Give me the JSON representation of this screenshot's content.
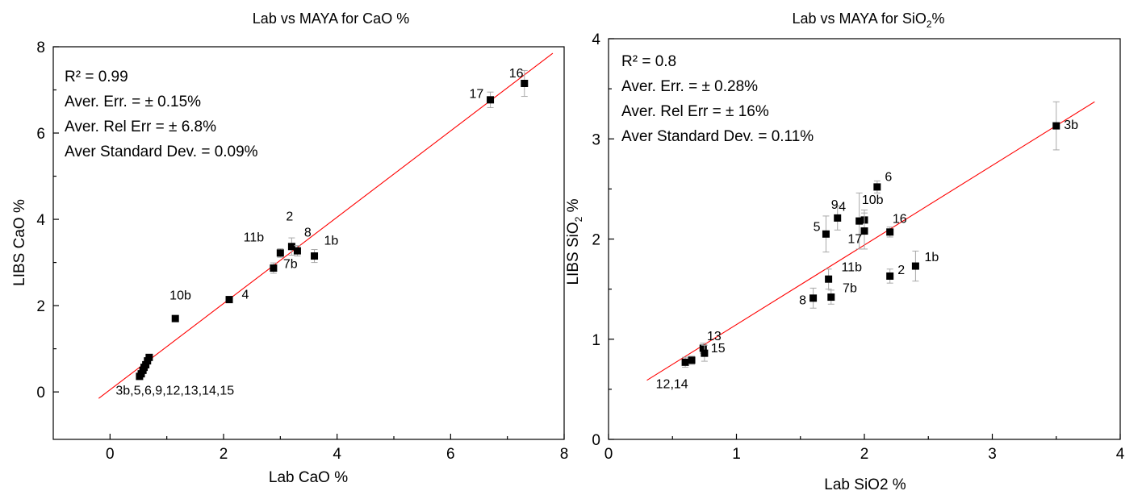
{
  "chart_data": [
    {
      "type": "scatter",
      "title": "Lab vs MAYA for CaO %",
      "xlabel": "Lab CaO %",
      "ylabel": "LIBS CaO %",
      "xlim": [
        -1,
        8
      ],
      "ylim": [
        -1.1,
        8
      ],
      "xticks": [
        0,
        2,
        4,
        6,
        8
      ],
      "yticks": [
        0,
        2,
        4,
        6,
        8
      ],
      "stats": [
        "R² = 0.99",
        "Aver. Err. = ± 0.15%",
        "Aver. Rel Err = ± 6.8%",
        "Aver Standard Dev. = 0.09%"
      ],
      "fit_line": {
        "x": [
          -0.2,
          7.8
        ],
        "y": [
          -0.15,
          7.85
        ]
      },
      "points": [
        {
          "x": 0.52,
          "y": 0.36,
          "err": 0.05
        },
        {
          "x": 0.55,
          "y": 0.42,
          "err": 0.05
        },
        {
          "x": 0.58,
          "y": 0.5,
          "err": 0.05
        },
        {
          "x": 0.6,
          "y": 0.57,
          "err": 0.05
        },
        {
          "x": 0.63,
          "y": 0.63,
          "err": 0.05
        },
        {
          "x": 0.66,
          "y": 0.72,
          "err": 0.05
        },
        {
          "x": 0.69,
          "y": 0.8,
          "err": 0.05
        },
        {
          "x": 1.15,
          "y": 1.7,
          "err": 0.07
        },
        {
          "x": 2.1,
          "y": 2.14,
          "err": 0.07
        },
        {
          "x": 2.88,
          "y": 2.87,
          "err": 0.12
        },
        {
          "x": 3.0,
          "y": 3.22,
          "err": 0.1
        },
        {
          "x": 3.2,
          "y": 3.37,
          "err": 0.2
        },
        {
          "x": 3.3,
          "y": 3.27,
          "err": 0.12
        },
        {
          "x": 3.6,
          "y": 3.15,
          "err": 0.15
        },
        {
          "x": 6.7,
          "y": 6.77,
          "err": 0.18
        },
        {
          "x": 7.3,
          "y": 7.15,
          "err": 0.3
        }
      ],
      "labels": [
        {
          "text": "3b,5,6,9,12,13,14,15",
          "x": 0.1,
          "y": -0.06
        },
        {
          "text": "10b",
          "x": 1.05,
          "y": 2.14
        },
        {
          "text": "4",
          "x": 2.32,
          "y": 2.16
        },
        {
          "text": "7b",
          "x": 3.05,
          "y": 2.87
        },
        {
          "text": "11b",
          "x": 2.35,
          "y": 3.49
        },
        {
          "text": "2",
          "x": 3.1,
          "y": 3.97
        },
        {
          "text": "8",
          "x": 3.42,
          "y": 3.6
        },
        {
          "text": "1b",
          "x": 3.77,
          "y": 3.41
        },
        {
          "text": "17",
          "x": 6.33,
          "y": 6.81
        },
        {
          "text": "16",
          "x": 7.03,
          "y": 7.29
        }
      ]
    },
    {
      "type": "scatter",
      "title": "Lab vs MAYA for SiO",
      "title_sub": "2",
      "title_tail": "%",
      "xlabel": "Lab SiO2 %",
      "ylabel": "LIBS SiO",
      "ylabel_sub": "2",
      "ylabel_tail": " %",
      "xlim": [
        0,
        4
      ],
      "ylim": [
        0,
        4
      ],
      "xticks": [
        0,
        1,
        2,
        3,
        4
      ],
      "yticks": [
        0,
        1,
        2,
        3,
        4
      ],
      "stats": [
        "R² = 0.8",
        "Aver. Err. = ± 0.28%",
        "Aver. Rel Err = ± 16%",
        "Aver Standard Dev. = 0.11%"
      ],
      "fit_line": {
        "x": [
          0.3,
          3.8
        ],
        "y": [
          0.59,
          3.37
        ]
      },
      "points": [
        {
          "x": 0.6,
          "y": 0.77,
          "err": 0.05
        },
        {
          "x": 0.65,
          "y": 0.79,
          "err": 0.04
        },
        {
          "x": 0.74,
          "y": 0.91,
          "err": 0.05
        },
        {
          "x": 0.75,
          "y": 0.86,
          "err": 0.08
        },
        {
          "x": 1.6,
          "y": 1.41,
          "err": 0.1
        },
        {
          "x": 1.72,
          "y": 1.6,
          "err": 0.1
        },
        {
          "x": 1.74,
          "y": 1.42,
          "err": 0.07
        },
        {
          "x": 1.7,
          "y": 2.05,
          "err": 0.18
        },
        {
          "x": 1.79,
          "y": 2.21,
          "err": 0.12
        },
        {
          "x": 1.96,
          "y": 2.18,
          "err": 0.28
        },
        {
          "x": 2.0,
          "y": 2.19,
          "err": 0.1
        },
        {
          "x": 2.0,
          "y": 2.08,
          "err": 0.18
        },
        {
          "x": 2.1,
          "y": 2.52,
          "err": 0.06
        },
        {
          "x": 2.2,
          "y": 2.07,
          "err": 0.05
        },
        {
          "x": 2.2,
          "y": 1.63,
          "err": 0.07
        },
        {
          "x": 2.4,
          "y": 1.73,
          "err": 0.15
        },
        {
          "x": 3.5,
          "y": 3.13,
          "err": 0.24
        }
      ],
      "labels": [
        {
          "text": "12,14",
          "x": 0.37,
          "y": 0.51
        },
        {
          "text": "13",
          "x": 0.77,
          "y": 0.99
        },
        {
          "text": "15",
          "x": 0.8,
          "y": 0.87
        },
        {
          "text": "8",
          "x": 1.49,
          "y": 1.35
        },
        {
          "text": "7b",
          "x": 1.83,
          "y": 1.47
        },
        {
          "text": "11b",
          "x": 1.82,
          "y": 1.68
        },
        {
          "text": "5",
          "x": 1.6,
          "y": 2.08
        },
        {
          "text": "9",
          "x": 1.74,
          "y": 2.3
        },
        {
          "text": "4",
          "x": 1.8,
          "y": 2.28
        },
        {
          "text": "17",
          "x": 1.87,
          "y": 1.96
        },
        {
          "text": "10b",
          "x": 1.98,
          "y": 2.35
        },
        {
          "text": "6",
          "x": 2.16,
          "y": 2.58
        },
        {
          "text": "16",
          "x": 2.22,
          "y": 2.16
        },
        {
          "text": "2",
          "x": 2.26,
          "y": 1.65
        },
        {
          "text": "1b",
          "x": 2.47,
          "y": 1.78
        },
        {
          "text": "3b",
          "x": 3.56,
          "y": 3.1
        }
      ]
    }
  ]
}
